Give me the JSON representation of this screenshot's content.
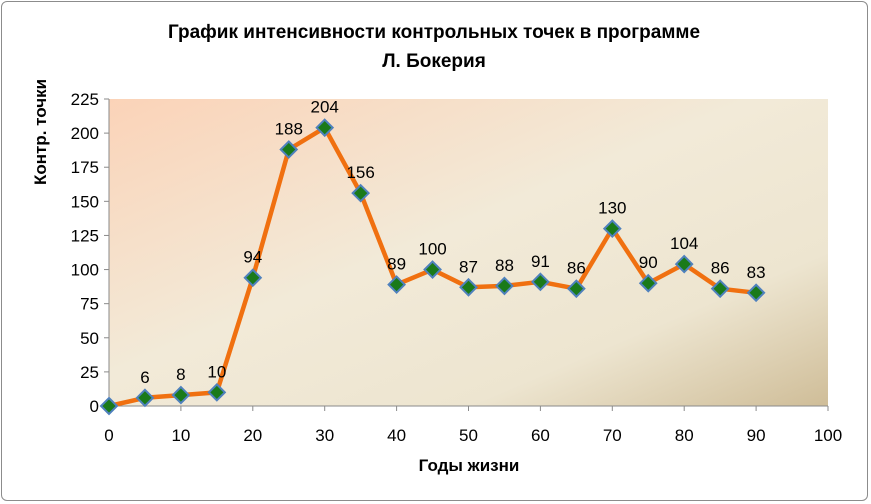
{
  "chart_data": {
    "type": "line",
    "title_lines": [
      "График интенсивности контрольных точек   в программе",
      "Л. Бокерия"
    ],
    "xlabel": "Годы жизни",
    "ylabel": "Контр. точки",
    "xlim": [
      0,
      100
    ],
    "ylim": [
      0,
      225
    ],
    "x_ticks": [
      0,
      10,
      20,
      30,
      40,
      50,
      60,
      70,
      80,
      90,
      100
    ],
    "y_ticks": [
      0,
      25,
      50,
      75,
      100,
      125,
      150,
      175,
      200,
      225
    ],
    "grid": false,
    "legend": "none",
    "series": [
      {
        "x": [
          0,
          5,
          10,
          15,
          20,
          25,
          30,
          35,
          40,
          45,
          50,
          55,
          60,
          65,
          70,
          75,
          80,
          85,
          90
        ],
        "values": [
          0,
          6,
          8,
          10,
          94,
          188,
          204,
          156,
          89,
          100,
          87,
          88,
          91,
          86,
          130,
          90,
          104,
          86,
          83
        ],
        "labels": [
          "",
          "6",
          "8",
          "10",
          "94",
          "188",
          "204",
          "156",
          "89",
          "100",
          "87",
          "88",
          "91",
          "86",
          "130",
          "90",
          "104",
          "86",
          "83"
        ],
        "line_color": "#f07010",
        "marker_color": "#1a7a1a",
        "marker_edge_color": "#4f81bd",
        "marker": "diamond"
      }
    ],
    "plot_background": [
      "#fbd3b8",
      "#f2ead8",
      "#ede5d0",
      "#cfbd98"
    ]
  }
}
